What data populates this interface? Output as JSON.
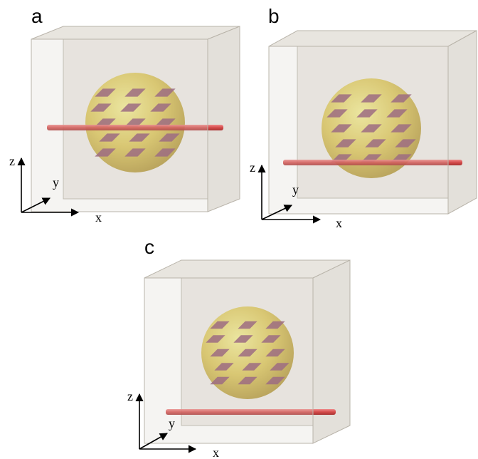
{
  "panels": [
    {
      "label": "a",
      "axes": {
        "z": "z",
        "y": "y",
        "x": "x"
      }
    },
    {
      "label": "b",
      "axes": {
        "z": "z",
        "y": "y",
        "x": "x"
      }
    },
    {
      "label": "c",
      "axes": {
        "z": "z",
        "y": "y",
        "x": "x"
      }
    }
  ]
}
